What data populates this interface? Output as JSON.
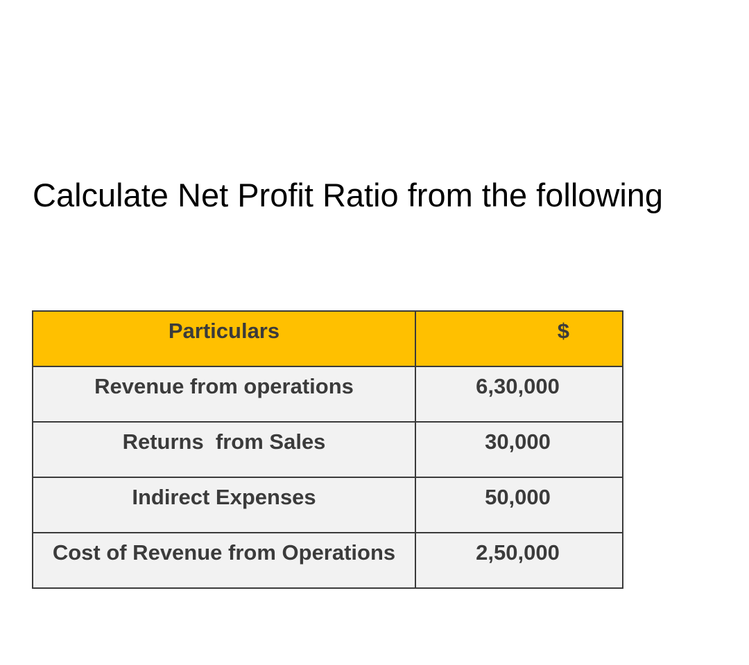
{
  "title": "Calculate Net Profit Ratio from the following",
  "table": {
    "headers": [
      "Particulars",
      "$"
    ],
    "rows": [
      {
        "particular": "Revenue from operations",
        "amount": "6,30,000"
      },
      {
        "particular": "Returns  from Sales",
        "amount": "30,000"
      },
      {
        "particular": "Indirect Expenses",
        "amount": "50,000"
      },
      {
        "particular": "Cost of Revenue from Operations",
        "amount": "2,50,000"
      }
    ]
  },
  "colors": {
    "header_background": "#ffc000",
    "row_background": "#f2f2f2",
    "text": "#3b3b3b",
    "border": "#3a3a3a"
  }
}
